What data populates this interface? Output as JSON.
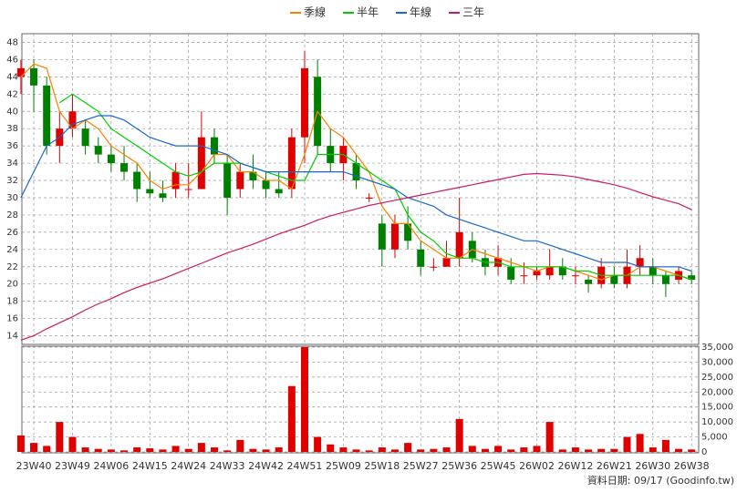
{
  "chart_data": [
    {
      "type": "candlestick",
      "categories": [
        null,
        "23W40",
        null,
        null,
        "23W49",
        null,
        null,
        "24W06",
        null,
        null,
        "24W15",
        null,
        null,
        "24W24",
        null,
        null,
        "24W33",
        null,
        null,
        "24W42",
        null,
        null,
        "24W51",
        null,
        null,
        "25W09",
        null,
        null,
        "25W18",
        null,
        null,
        "25W27",
        null,
        null,
        "25W36",
        null,
        null,
        "25W45",
        null,
        null,
        "26W02",
        null,
        null,
        "26W12",
        null,
        null,
        "26W21",
        null,
        null,
        "26W30",
        null,
        null,
        "26W38"
      ],
      "open": [
        44,
        45,
        43,
        36,
        38,
        38,
        36,
        35,
        34,
        33,
        31,
        30.5,
        31,
        31,
        31,
        37,
        34,
        31,
        33,
        32,
        31,
        31,
        37,
        44,
        36,
        34,
        34,
        30,
        27,
        24,
        27,
        24,
        22,
        22,
        23,
        25,
        23,
        22,
        22,
        21,
        21,
        21,
        22,
        21,
        20.5,
        20,
        21,
        20,
        22,
        22,
        21,
        20.5,
        21
      ],
      "high": [
        46,
        46,
        44,
        40,
        42,
        39,
        37,
        36,
        36,
        34,
        33,
        32,
        34,
        34,
        40,
        38,
        35,
        34,
        35,
        33,
        33,
        38,
        47,
        46,
        38,
        37,
        35,
        30.5,
        28,
        28,
        29,
        25,
        23,
        25,
        30,
        26,
        24,
        24.5,
        23,
        22.5,
        22,
        24,
        23,
        22,
        21,
        23,
        22,
        24,
        24.5,
        23,
        21.5,
        22,
        21.5
      ],
      "low": [
        42,
        40,
        35,
        34,
        37,
        35,
        34,
        33,
        32,
        29.5,
        30,
        29.5,
        30,
        30,
        31,
        34,
        28,
        30,
        31,
        30,
        30,
        30,
        34,
        35,
        33,
        32,
        31,
        29.5,
        22,
        23,
        24,
        21,
        21.5,
        22,
        22,
        22.5,
        21,
        21,
        20,
        20,
        20.5,
        20.5,
        20.5,
        20,
        19,
        19.5,
        19.5,
        19.5,
        21,
        20,
        18.5,
        20,
        20
      ],
      "close": [
        45,
        43,
        36,
        38,
        40,
        36,
        35,
        34,
        33,
        31,
        30.5,
        30,
        33,
        31,
        37,
        35,
        30,
        33,
        32,
        31,
        30.5,
        37,
        45,
        36,
        34,
        36,
        32,
        30,
        24,
        27,
        25,
        22,
        22,
        23,
        26,
        23,
        22,
        23,
        20.5,
        21,
        21.5,
        22,
        21,
        21,
        20,
        22,
        20,
        22,
        23,
        21,
        20,
        21.5,
        20.5
      ],
      "up_color": "#e00000",
      "down_color": "#008000",
      "series": [
        {
          "name": "季線",
          "color": "#ff8000",
          "values": [
            44,
            45.5,
            45,
            40,
            38,
            39,
            38,
            36,
            35,
            34,
            32,
            31,
            31.5,
            31.5,
            33,
            35,
            35,
            33,
            33,
            32,
            32,
            31,
            35,
            40,
            38,
            37,
            35,
            33,
            29,
            27,
            27,
            25,
            24,
            23,
            23,
            24,
            23.5,
            23,
            22.5,
            22,
            21.5,
            22,
            22,
            21.5,
            21,
            20.5,
            21,
            21,
            22,
            22,
            21.5,
            21,
            20.5
          ]
        },
        {
          "name": "半年",
          "color": "#00cc00",
          "values": [
            null,
            null,
            null,
            41,
            42,
            41,
            40,
            38,
            37,
            36,
            35,
            34,
            33,
            32.5,
            33,
            34,
            34,
            34,
            33.5,
            33,
            32.5,
            32,
            32,
            35,
            35,
            35,
            34,
            33,
            32,
            31,
            28,
            26,
            25,
            23.5,
            23,
            23,
            22.5,
            22.5,
            22,
            22,
            22,
            22,
            22,
            21.5,
            21.5,
            21,
            21,
            21,
            21,
            21,
            21,
            21,
            20.5
          ]
        },
        {
          "name": "年線",
          "color": "#1a66cc",
          "values": [
            30,
            33,
            36,
            37,
            38.5,
            39,
            39.5,
            39.5,
            39,
            38,
            37,
            36.5,
            36,
            36,
            36,
            35.5,
            35,
            34,
            33.5,
            33,
            33,
            33,
            33,
            33,
            33,
            33,
            32.5,
            32,
            31.5,
            31,
            30,
            29.5,
            29,
            28,
            27.5,
            27,
            26.5,
            26,
            25.5,
            25,
            25,
            24.5,
            24,
            23.5,
            23,
            22.5,
            22.5,
            22.5,
            22,
            22,
            22,
            22,
            21.5
          ]
        },
        {
          "name": "三年",
          "color": "#cc1a66",
          "values": [
            13.5,
            14,
            14.8,
            15.5,
            16.2,
            17,
            17.7,
            18.3,
            19,
            19.6,
            20.1,
            20.6,
            21.2,
            21.8,
            22.4,
            23,
            23.6,
            24.1,
            24.6,
            25.2,
            25.8,
            26.3,
            26.8,
            27.4,
            27.9,
            28.3,
            28.7,
            29.1,
            29.4,
            29.7,
            30,
            30.3,
            30.6,
            30.9,
            31.2,
            31.5,
            31.8,
            32.1,
            32.4,
            32.7,
            32.8,
            32.7,
            32.6,
            32.4,
            32.1,
            31.8,
            31.5,
            31.1,
            30.6,
            30.1,
            29.7,
            29.3,
            28.6
          ]
        }
      ],
      "ylim": [
        13,
        49
      ],
      "yticks": [
        14,
        16,
        18,
        20,
        22,
        24,
        26,
        28,
        30,
        32,
        34,
        36,
        38,
        40,
        42,
        44,
        46,
        48
      ],
      "grid": true
    },
    {
      "type": "bar",
      "values": [
        5500,
        3000,
        2000,
        10000,
        5000,
        1500,
        1000,
        800,
        500,
        1500,
        1200,
        800,
        2000,
        1000,
        3000,
        1500,
        500,
        4000,
        1000,
        800,
        1500,
        22000,
        35000,
        5000,
        2500,
        1500,
        800,
        500,
        1500,
        800,
        3000,
        800,
        1000,
        1500,
        11000,
        2000,
        1000,
        2000,
        800,
        1500,
        2000,
        10000,
        800,
        1500,
        800,
        1000,
        1000,
        5000,
        6000,
        1500,
        4000,
        1000,
        800
      ],
      "color": "#e00000",
      "ylim": [
        0,
        35000
      ],
      "yticks": [
        0,
        {
          "value": 5000,
          "label": "5,000"
        },
        {
          "value": 10000,
          "label": "10,000"
        },
        {
          "value": 15000,
          "label": "15,000"
        },
        {
          "value": 20000,
          "label": "20,000"
        },
        {
          "value": 25000,
          "label": "25,000"
        },
        {
          "value": 30000,
          "label": "30,000"
        },
        {
          "value": 35000,
          "label": "35,000"
        }
      ],
      "grid": true
    }
  ],
  "footer": "資料日期: 09/17 (Goodinfo.tw)"
}
